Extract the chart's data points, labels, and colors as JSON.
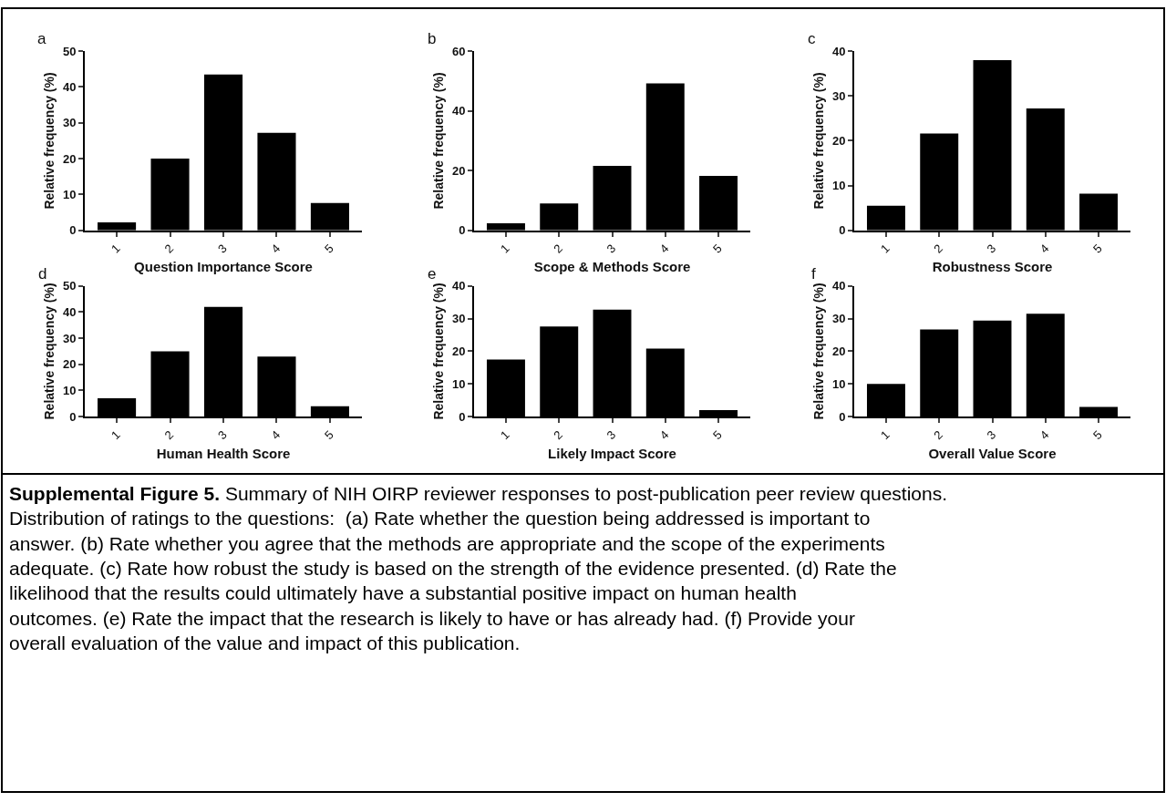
{
  "chart_data": [
    {
      "type": "bar",
      "title": "a",
      "xlabel": "Question Importance Score",
      "ylabel": "Relative frequency (%)",
      "categories": [
        "1",
        "2",
        "3",
        "4",
        "5"
      ],
      "values": [
        2.2,
        20,
        43.5,
        27.2,
        7.6
      ],
      "color": "#000000",
      "ylim": [
        0,
        50
      ],
      "yticks": [
        0,
        10,
        20,
        30,
        40,
        50
      ]
    },
    {
      "type": "bar",
      "title": "b",
      "xlabel": "Scope & Methods Score",
      "ylabel": "Relative frequency (%)",
      "categories": [
        "1",
        "2",
        "3",
        "4",
        "5"
      ],
      "values": [
        2.4,
        9,
        21.6,
        49.2,
        18.2
      ],
      "color": "#000000",
      "ylim": [
        0,
        60
      ],
      "yticks": [
        0,
        20,
        40,
        60
      ]
    },
    {
      "type": "bar",
      "title": "c",
      "xlabel": "Robustness Score",
      "ylabel": "Relative frequency (%)",
      "categories": [
        "1",
        "2",
        "3",
        "4",
        "5"
      ],
      "values": [
        5.5,
        21.6,
        38,
        27.2,
        8.2
      ],
      "color": "#000000",
      "ylim": [
        0,
        40
      ],
      "yticks": [
        0,
        10,
        20,
        30,
        40
      ]
    },
    {
      "type": "bar",
      "title": "d",
      "xlabel": "Human Health Score",
      "ylabel": "Relative frequency (%)",
      "categories": [
        "1",
        "2",
        "3",
        "4",
        "5"
      ],
      "values": [
        7,
        25,
        42,
        23,
        4
      ],
      "color": "#000000",
      "ylim": [
        0,
        50
      ],
      "yticks": [
        0,
        10,
        20,
        30,
        40,
        50
      ]
    },
    {
      "type": "bar",
      "title": "e",
      "xlabel": "Likely Impact Score",
      "ylabel": "Relative frequency (%)",
      "categories": [
        "1",
        "2",
        "3",
        "4",
        "5"
      ],
      "values": [
        17.5,
        27.6,
        32.7,
        20.8,
        2
      ],
      "color": "#000000",
      "ylim": [
        0,
        40
      ],
      "yticks": [
        0,
        10,
        20,
        30,
        40
      ]
    },
    {
      "type": "bar",
      "title": "f",
      "xlabel": "Overall Value Score",
      "ylabel": "Relative frequency (%)",
      "categories": [
        "1",
        "2",
        "3",
        "4",
        "5"
      ],
      "values": [
        10,
        26.7,
        29.4,
        31.5,
        3
      ],
      "color": "#000000",
      "ylim": [
        0,
        40
      ],
      "yticks": [
        0,
        10,
        20,
        30,
        40
      ],
      "annotations": [
        "Supplemental Figure 5.",
        "Summary of NIH OIRP reviewer responses to post-publication peer review questions. Distribution of ratings to the questions:  (a) Rate whether the question being addressed is important to answer. (b) Rate whether you agree that the methods are appropriate and the scope of the experiments adequate. (c) Rate how robust the study is based on the strength of the evidence presented. (d) Rate the likelihood that the results could ultimately have a substantial positive impact on human health outcomes. (e) Rate the impact that the research is likely to have or has already had. (f) Provide your overall evaluation of the value and impact of this publication."
      ]
    }
  ]
}
